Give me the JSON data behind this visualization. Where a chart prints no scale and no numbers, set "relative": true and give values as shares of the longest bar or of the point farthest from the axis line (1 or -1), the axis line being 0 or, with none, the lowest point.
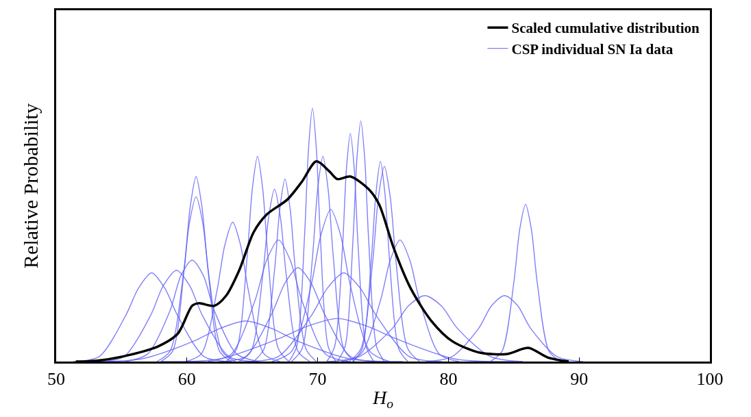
{
  "chart_data": {
    "type": "line",
    "relative": true,
    "xlabel": "H$_{o}$",
    "ylabel": "Relative Probability",
    "xlim": [
      50,
      100
    ],
    "xticks": [
      50,
      60,
      70,
      80,
      90,
      100
    ],
    "legend": "top right",
    "series": [
      {
        "name": "Scaled cumulative distribution",
        "color": "#000000",
        "x": [
          51.5,
          53.0,
          55.1,
          57.8,
          59.3,
          60.4,
          60.9,
          62.1,
          63.0,
          64.0,
          65.1,
          66.1,
          67.7,
          68.8,
          69.9,
          70.9,
          71.5,
          72.5,
          73.9,
          74.7,
          75.8,
          77.1,
          78.7,
          80.3,
          82.4,
          84.5,
          86.1,
          87.6,
          89.2
        ],
        "values": [
          0,
          0.003,
          0.02,
          0.06,
          0.11,
          0.22,
          0.23,
          0.22,
          0.26,
          0.36,
          0.51,
          0.58,
          0.64,
          0.71,
          0.79,
          0.75,
          0.72,
          0.73,
          0.68,
          0.62,
          0.45,
          0.29,
          0.16,
          0.08,
          0.035,
          0.03,
          0.054,
          0.016,
          0
        ]
      },
      {
        "name": "CSP individual SN Ia data",
        "color": "#6060f8",
        "x": [
          51.3,
          53.3,
          55.3,
          56.3,
          57.3,
          58.3,
          59.3,
          61.3,
          63.3
        ],
        "values": [
          0,
          0.02,
          0.18,
          0.29,
          0.35,
          0.29,
          0.18,
          0.02,
          0
        ]
      },
      {
        "color": "#6060f8",
        "x": [
          53.2,
          55.2,
          57.2,
          58.2,
          59.2,
          60.2,
          61.2,
          63.2,
          65.2
        ],
        "values": [
          0,
          0.02,
          0.18,
          0.3,
          0.36,
          0.3,
          0.18,
          0.02,
          0
        ]
      },
      {
        "color": "#6060f8",
        "x": [
          58.0,
          58.9,
          59.8,
          60.25,
          60.7,
          61.15,
          61.6,
          62.5,
          63.4
        ],
        "values": [
          0,
          0.04,
          0.37,
          0.61,
          0.73,
          0.61,
          0.37,
          0.04,
          0
        ]
      },
      {
        "color": "#6060f8",
        "x": [
          57.7,
          58.7,
          59.7,
          60.2,
          60.7,
          61.2,
          61.7,
          62.7,
          63.7
        ],
        "values": [
          0,
          0.04,
          0.33,
          0.55,
          0.65,
          0.55,
          0.33,
          0.04,
          0
        ]
      },
      {
        "color": "#6060f8",
        "x": [
          55.3,
          57.0,
          58.7,
          59.55,
          60.4,
          61.25,
          62.1,
          63.8,
          65.5
        ],
        "values": [
          0,
          0.03,
          0.2,
          0.34,
          0.4,
          0.34,
          0.2,
          0.03,
          0
        ]
      },
      {
        "color": "#6060f8",
        "x": [
          59.9,
          61.1,
          62.3,
          62.9,
          63.5,
          64.1,
          64.7,
          65.9,
          67.1
        ],
        "values": [
          0,
          0.03,
          0.28,
          0.46,
          0.55,
          0.46,
          0.28,
          0.03,
          0
        ]
      },
      {
        "color": "#6060f8",
        "x": [
          63.0,
          63.8,
          64.6,
          65.0,
          65.4,
          65.8,
          66.2,
          67.0,
          67.8
        ],
        "values": [
          0,
          0.05,
          0.41,
          0.68,
          0.81,
          0.68,
          0.41,
          0.05,
          0
        ]
      },
      {
        "color": "#6060f8",
        "x": [
          64.0,
          64.9,
          65.8,
          66.25,
          66.7,
          67.15,
          67.6,
          68.5,
          69.4
        ],
        "values": [
          0,
          0.04,
          0.34,
          0.57,
          0.68,
          0.57,
          0.34,
          0.04,
          0
        ]
      },
      {
        "color": "#6060f8",
        "x": [
          65.1,
          65.9,
          66.7,
          67.1,
          67.5,
          67.9,
          68.3,
          69.1,
          69.9
        ],
        "values": [
          0,
          0.05,
          0.36,
          0.6,
          0.72,
          0.6,
          0.36,
          0.05,
          0
        ]
      },
      {
        "color": "#6060f8",
        "x": [
          67.8,
          68.4,
          69.0,
          69.3,
          69.6,
          69.9,
          70.2,
          70.8,
          71.4
        ],
        "values": [
          0,
          0.06,
          0.5,
          0.84,
          1,
          0.84,
          0.5,
          0.06,
          0
        ]
      },
      {
        "color": "#6060f8",
        "x": [
          68.0,
          68.8,
          69.6,
          70.0,
          70.4,
          70.8,
          71.2,
          72.0,
          72.8
        ],
        "values": [
          0,
          0.05,
          0.41,
          0.68,
          0.81,
          0.68,
          0.41,
          0.05,
          0
        ]
      },
      {
        "color": "#6060f8",
        "x": [
          70.7,
          71.3,
          71.9,
          72.2,
          72.5,
          72.8,
          73.1,
          73.7,
          74.3
        ],
        "values": [
          0,
          0.06,
          0.45,
          0.76,
          0.9,
          0.76,
          0.45,
          0.06,
          0
        ]
      },
      {
        "color": "#6060f8",
        "x": [
          71.5,
          72.1,
          72.7,
          73.0,
          73.3,
          73.6,
          73.9,
          74.5,
          75.1
        ],
        "values": [
          0,
          0.06,
          0.48,
          0.8,
          0.95,
          0.8,
          0.48,
          0.06,
          0
        ]
      },
      {
        "color": "#6060f8",
        "x": [
          72.7,
          73.4,
          74.1,
          74.45,
          74.8,
          75.15,
          75.5,
          76.2,
          76.9
        ],
        "values": [
          0,
          0.05,
          0.4,
          0.66,
          0.79,
          0.66,
          0.4,
          0.05,
          0
        ]
      },
      {
        "color": "#6060f8",
        "x": [
          72.4,
          73.3,
          74.2,
          74.65,
          75.1,
          75.55,
          76.0,
          76.9,
          77.8
        ],
        "values": [
          0,
          0.05,
          0.39,
          0.65,
          0.77,
          0.65,
          0.39,
          0.05,
          0
        ]
      },
      {
        "color": "#6060f8",
        "x": [
          66.5,
          68.0,
          69.5,
          70.25,
          71.0,
          71.75,
          72.5,
          74.0,
          75.5
        ],
        "values": [
          0,
          0.04,
          0.3,
          0.5,
          0.6,
          0.5,
          0.3,
          0.04,
          0
        ]
      },
      {
        "color": "#6060f8",
        "x": [
          71.8,
          73.3,
          74.8,
          75.55,
          76.3,
          77.05,
          77.8,
          79.3,
          80.8
        ],
        "values": [
          0,
          0.03,
          0.24,
          0.4,
          0.48,
          0.4,
          0.24,
          0.03,
          0
        ]
      },
      {
        "color": "#6060f8",
        "x": [
          70.7,
          73.2,
          75.7,
          76.95,
          78.2,
          79.45,
          80.7,
          83.2,
          85.7
        ],
        "values": [
          0,
          0.02,
          0.13,
          0.22,
          0.26,
          0.22,
          0.13,
          0.02,
          0
        ]
      },
      {
        "color": "#6060f8",
        "x": [
          78.3,
          80.3,
          82.3,
          83.3,
          84.3,
          85.3,
          86.3,
          88.3,
          90.3
        ],
        "values": [
          0,
          0.02,
          0.13,
          0.22,
          0.26,
          0.22,
          0.13,
          0.02,
          0
        ]
      },
      {
        "color": "#6060f8",
        "x": [
          83.2,
          84.1,
          85.0,
          85.45,
          85.9,
          86.35,
          86.8,
          87.7,
          88.6
        ],
        "values": [
          0,
          0.04,
          0.31,
          0.52,
          0.62,
          0.52,
          0.31,
          0.04,
          0
        ]
      },
      {
        "color": "#6060f8",
        "x": [
          52.5,
          56.5,
          60.5,
          62.5,
          64.5,
          66.5,
          68.5,
          72.5,
          76.5
        ],
        "values": [
          0,
          0.01,
          0.08,
          0.13,
          0.16,
          0.13,
          0.08,
          0.01,
          0
        ]
      },
      {
        "color": "#6060f8",
        "x": [
          58.0,
          62.5,
          67.0,
          69.25,
          71.5,
          73.75,
          76.0,
          80.5,
          85.0
        ],
        "values": [
          0,
          0.01,
          0.09,
          0.14,
          0.17,
          0.14,
          0.09,
          0.01,
          0
        ]
      },
      {
        "color": "#6060f8",
        "x": [
          62.5,
          64.5,
          66.5,
          67.5,
          68.5,
          69.5,
          70.5,
          72.5,
          74.5
        ],
        "values": [
          0,
          0.02,
          0.19,
          0.31,
          0.37,
          0.31,
          0.19,
          0.02,
          0
        ]
      },
      {
        "color": "#6060f8",
        "x": [
          64.5,
          67.0,
          69.5,
          70.75,
          72.0,
          73.25,
          74.5,
          77.0,
          79.5
        ],
        "values": [
          0,
          0.02,
          0.18,
          0.29,
          0.35,
          0.29,
          0.18,
          0.02,
          0
        ]
      },
      {
        "color": "#6060f8",
        "x": [
          61.6,
          63.4,
          65.2,
          66.1,
          67.0,
          67.9,
          68.8,
          70.6,
          72.4
        ],
        "values": [
          0,
          0.03,
          0.24,
          0.4,
          0.48,
          0.4,
          0.24,
          0.03,
          0
        ]
      }
    ]
  }
}
